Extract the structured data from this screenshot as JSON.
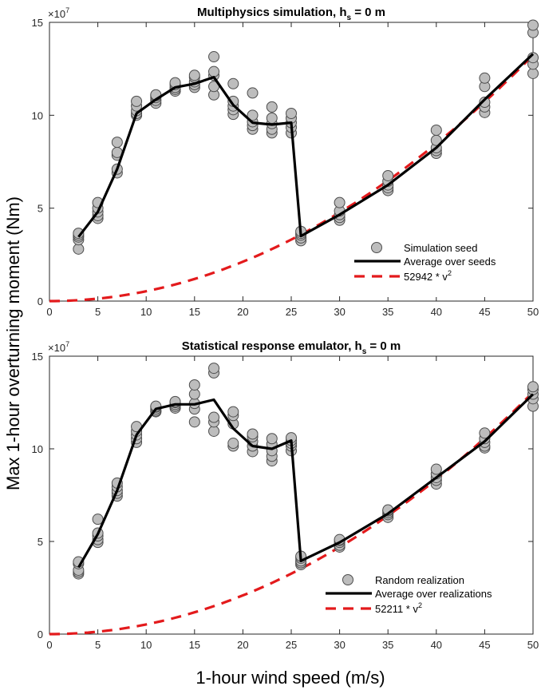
{
  "figure": {
    "ylabel": "Max 1-hour overturning moment (Nm)",
    "xlabel": "1-hour wind speed (m/s)"
  },
  "chart_data": [
    {
      "type": "scatter",
      "title": "Multiphysics simulation, h",
      "title_subscript": "s",
      "title_suffix": " = 0 m",
      "y_exponent_base": "×10",
      "y_exponent": "7",
      "xlim": [
        0,
        50
      ],
      "ylim": [
        0,
        150000000
      ],
      "xticks": [
        0,
        5,
        10,
        15,
        20,
        25,
        30,
        35,
        40,
        45,
        50
      ],
      "yticks": [
        0,
        50000000,
        100000000,
        150000000
      ],
      "yticklabels": [
        "0",
        "5",
        "10",
        "15"
      ],
      "legend_position": "lower-right",
      "grid": false,
      "points": [
        [
          3,
          28000000
        ],
        [
          3,
          33000000
        ],
        [
          3,
          34500000
        ],
        [
          3,
          35500000
        ],
        [
          3,
          36500000
        ],
        [
          5,
          44500000
        ],
        [
          5,
          46000000
        ],
        [
          5,
          48000000
        ],
        [
          5,
          50000000
        ],
        [
          5,
          53000000
        ],
        [
          7,
          69000000
        ],
        [
          7,
          71000000
        ],
        [
          7,
          78500000
        ],
        [
          7,
          80000000
        ],
        [
          7,
          85500000
        ],
        [
          9,
          100000000
        ],
        [
          9,
          101000000
        ],
        [
          9,
          102500000
        ],
        [
          9,
          105000000
        ],
        [
          9,
          107500000
        ],
        [
          11,
          106500000
        ],
        [
          11,
          108000000
        ],
        [
          11,
          109500000
        ],
        [
          11,
          110500000
        ],
        [
          11,
          111000000
        ],
        [
          13,
          113000000
        ],
        [
          13,
          114000000
        ],
        [
          13,
          115000000
        ],
        [
          13,
          116500000
        ],
        [
          13,
          117500000
        ],
        [
          15,
          115000000
        ],
        [
          15,
          116500000
        ],
        [
          15,
          118000000
        ],
        [
          15,
          120500000
        ],
        [
          15,
          121500000
        ],
        [
          17,
          111000000
        ],
        [
          17,
          115500000
        ],
        [
          17,
          121500000
        ],
        [
          17,
          123500000
        ],
        [
          17,
          131500000
        ],
        [
          19,
          100500000
        ],
        [
          19,
          103000000
        ],
        [
          19,
          105000000
        ],
        [
          19,
          107500000
        ],
        [
          19,
          117000000
        ],
        [
          21,
          92500000
        ],
        [
          21,
          94500000
        ],
        [
          21,
          96500000
        ],
        [
          21,
          100000000
        ],
        [
          21,
          112000000
        ],
        [
          23,
          90500000
        ],
        [
          23,
          92500000
        ],
        [
          23,
          95500000
        ],
        [
          23,
          98500000
        ],
        [
          23,
          104500000
        ],
        [
          25,
          90500000
        ],
        [
          25,
          93500000
        ],
        [
          25,
          96000000
        ],
        [
          25,
          98500000
        ],
        [
          25,
          101000000
        ],
        [
          26,
          32500000
        ],
        [
          26,
          34000000
        ],
        [
          26,
          35500000
        ],
        [
          26,
          36500000
        ],
        [
          26,
          37500000
        ],
        [
          30,
          43500000
        ],
        [
          30,
          45000000
        ],
        [
          30,
          46500000
        ],
        [
          30,
          48500000
        ],
        [
          30,
          53000000
        ],
        [
          35,
          59500000
        ],
        [
          35,
          61000000
        ],
        [
          35,
          62500000
        ],
        [
          35,
          64500000
        ],
        [
          35,
          67500000
        ],
        [
          40,
          79500000
        ],
        [
          40,
          81000000
        ],
        [
          40,
          82500000
        ],
        [
          40,
          86500000
        ],
        [
          40,
          92000000
        ],
        [
          45,
          101500000
        ],
        [
          45,
          104500000
        ],
        [
          45,
          107000000
        ],
        [
          45,
          115500000
        ],
        [
          45,
          120000000
        ],
        [
          50,
          122500000
        ],
        [
          50,
          127500000
        ],
        [
          50,
          131000000
        ],
        [
          50,
          144500000
        ],
        [
          50,
          148500000
        ]
      ],
      "average_line": [
        [
          3,
          34500000
        ],
        [
          5,
          48000000
        ],
        [
          7,
          71000000
        ],
        [
          9,
          101000000
        ],
        [
          11,
          108500000
        ],
        [
          13,
          115000000
        ],
        [
          15,
          117000000
        ],
        [
          17,
          120500000
        ],
        [
          19,
          105500000
        ],
        [
          21,
          96000000
        ],
        [
          23,
          95000000
        ],
        [
          25,
          96000000
        ],
        [
          26,
          35000000
        ],
        [
          30,
          46500000
        ],
        [
          35,
          62500000
        ],
        [
          40,
          82500000
        ],
        [
          45,
          108500000
        ],
        [
          50,
          133000000
        ]
      ],
      "quadratic_coefficient": 52942,
      "legend": {
        "seed_label": "Simulation seed",
        "avg_label": "Average over seeds",
        "fit_label": "52942 * v",
        "fit_sup": "2"
      }
    },
    {
      "type": "scatter",
      "title": "Statistical response emulator, h",
      "title_subscript": "s",
      "title_suffix": " = 0 m",
      "y_exponent_base": "×10",
      "y_exponent": "7",
      "xlim": [
        0,
        50
      ],
      "ylim": [
        0,
        150000000
      ],
      "xticks": [
        0,
        5,
        10,
        15,
        20,
        25,
        30,
        35,
        40,
        45,
        50
      ],
      "yticks": [
        0,
        50000000,
        100000000,
        150000000
      ],
      "yticklabels": [
        "0",
        "5",
        "10",
        "15"
      ],
      "legend_position": "lower-right",
      "grid": false,
      "points": [
        [
          3,
          32500000
        ],
        [
          3,
          33500000
        ],
        [
          3,
          34500000
        ],
        [
          3,
          38000000
        ],
        [
          3,
          39000000
        ],
        [
          5,
          49500000
        ],
        [
          5,
          51000000
        ],
        [
          5,
          53000000
        ],
        [
          5,
          54500000
        ],
        [
          5,
          62000000
        ],
        [
          7,
          74500000
        ],
        [
          7,
          76000000
        ],
        [
          7,
          77500000
        ],
        [
          7,
          79500000
        ],
        [
          7,
          81500000
        ],
        [
          9,
          103500000
        ],
        [
          9,
          105500000
        ],
        [
          9,
          107500000
        ],
        [
          9,
          109500000
        ],
        [
          9,
          112000000
        ],
        [
          11,
          120000000
        ],
        [
          11,
          120500000
        ],
        [
          11,
          121500000
        ],
        [
          11,
          122500000
        ],
        [
          11,
          123000000
        ],
        [
          13,
          122000000
        ],
        [
          13,
          123000000
        ],
        [
          13,
          124000000
        ],
        [
          13,
          125000000
        ],
        [
          13,
          125500000
        ],
        [
          15,
          114500000
        ],
        [
          15,
          121500000
        ],
        [
          15,
          124500000
        ],
        [
          15,
          129500000
        ],
        [
          15,
          134500000
        ],
        [
          17,
          109500000
        ],
        [
          17,
          114500000
        ],
        [
          17,
          117000000
        ],
        [
          17,
          141000000
        ],
        [
          17,
          143500000
        ],
        [
          19,
          101500000
        ],
        [
          19,
          103000000
        ],
        [
          19,
          113500000
        ],
        [
          19,
          118000000
        ],
        [
          19,
          120000000
        ],
        [
          21,
          98500000
        ],
        [
          21,
          101500000
        ],
        [
          21,
          104000000
        ],
        [
          21,
          106500000
        ],
        [
          21,
          108000000
        ],
        [
          23,
          93500000
        ],
        [
          23,
          96000000
        ],
        [
          23,
          99000000
        ],
        [
          23,
          102500000
        ],
        [
          23,
          105500000
        ],
        [
          25,
          99000000
        ],
        [
          25,
          101500000
        ],
        [
          25,
          103000000
        ],
        [
          25,
          104500000
        ],
        [
          25,
          106000000
        ],
        [
          26,
          37500000
        ],
        [
          26,
          38500000
        ],
        [
          26,
          39500000
        ],
        [
          26,
          41000000
        ],
        [
          26,
          42000000
        ],
        [
          30,
          47000000
        ],
        [
          30,
          48000000
        ],
        [
          30,
          49500000
        ],
        [
          30,
          50500000
        ],
        [
          30,
          51000000
        ],
        [
          35,
          63000000
        ],
        [
          35,
          64500000
        ],
        [
          35,
          65500000
        ],
        [
          35,
          66500000
        ],
        [
          35,
          67000000
        ],
        [
          40,
          81000000
        ],
        [
          40,
          83000000
        ],
        [
          40,
          84500000
        ],
        [
          40,
          86500000
        ],
        [
          40,
          89000000
        ],
        [
          45,
          100500000
        ],
        [
          45,
          101500000
        ],
        [
          45,
          103500000
        ],
        [
          45,
          105500000
        ],
        [
          45,
          108500000
        ],
        [
          50,
          123000000
        ],
        [
          50,
          127000000
        ],
        [
          50,
          129500000
        ],
        [
          50,
          132000000
        ],
        [
          50,
          133500000
        ]
      ],
      "average_line": [
        [
          3,
          36000000
        ],
        [
          5,
          54000000
        ],
        [
          7,
          77500000
        ],
        [
          9,
          107500000
        ],
        [
          11,
          121500000
        ],
        [
          13,
          124000000
        ],
        [
          15,
          124000000
        ],
        [
          17,
          126500000
        ],
        [
          19,
          111000000
        ],
        [
          21,
          101500000
        ],
        [
          23,
          100000000
        ],
        [
          25,
          104500000
        ],
        [
          26,
          39500000
        ],
        [
          30,
          49500000
        ],
        [
          35,
          65000000
        ],
        [
          40,
          84500000
        ],
        [
          45,
          104000000
        ],
        [
          50,
          129500000
        ]
      ],
      "quadratic_coefficient": 52211,
      "legend": {
        "seed_label": "Random realization",
        "avg_label": "Average over realizations",
        "fit_label": "52211 * v",
        "fit_sup": "2"
      }
    }
  ]
}
